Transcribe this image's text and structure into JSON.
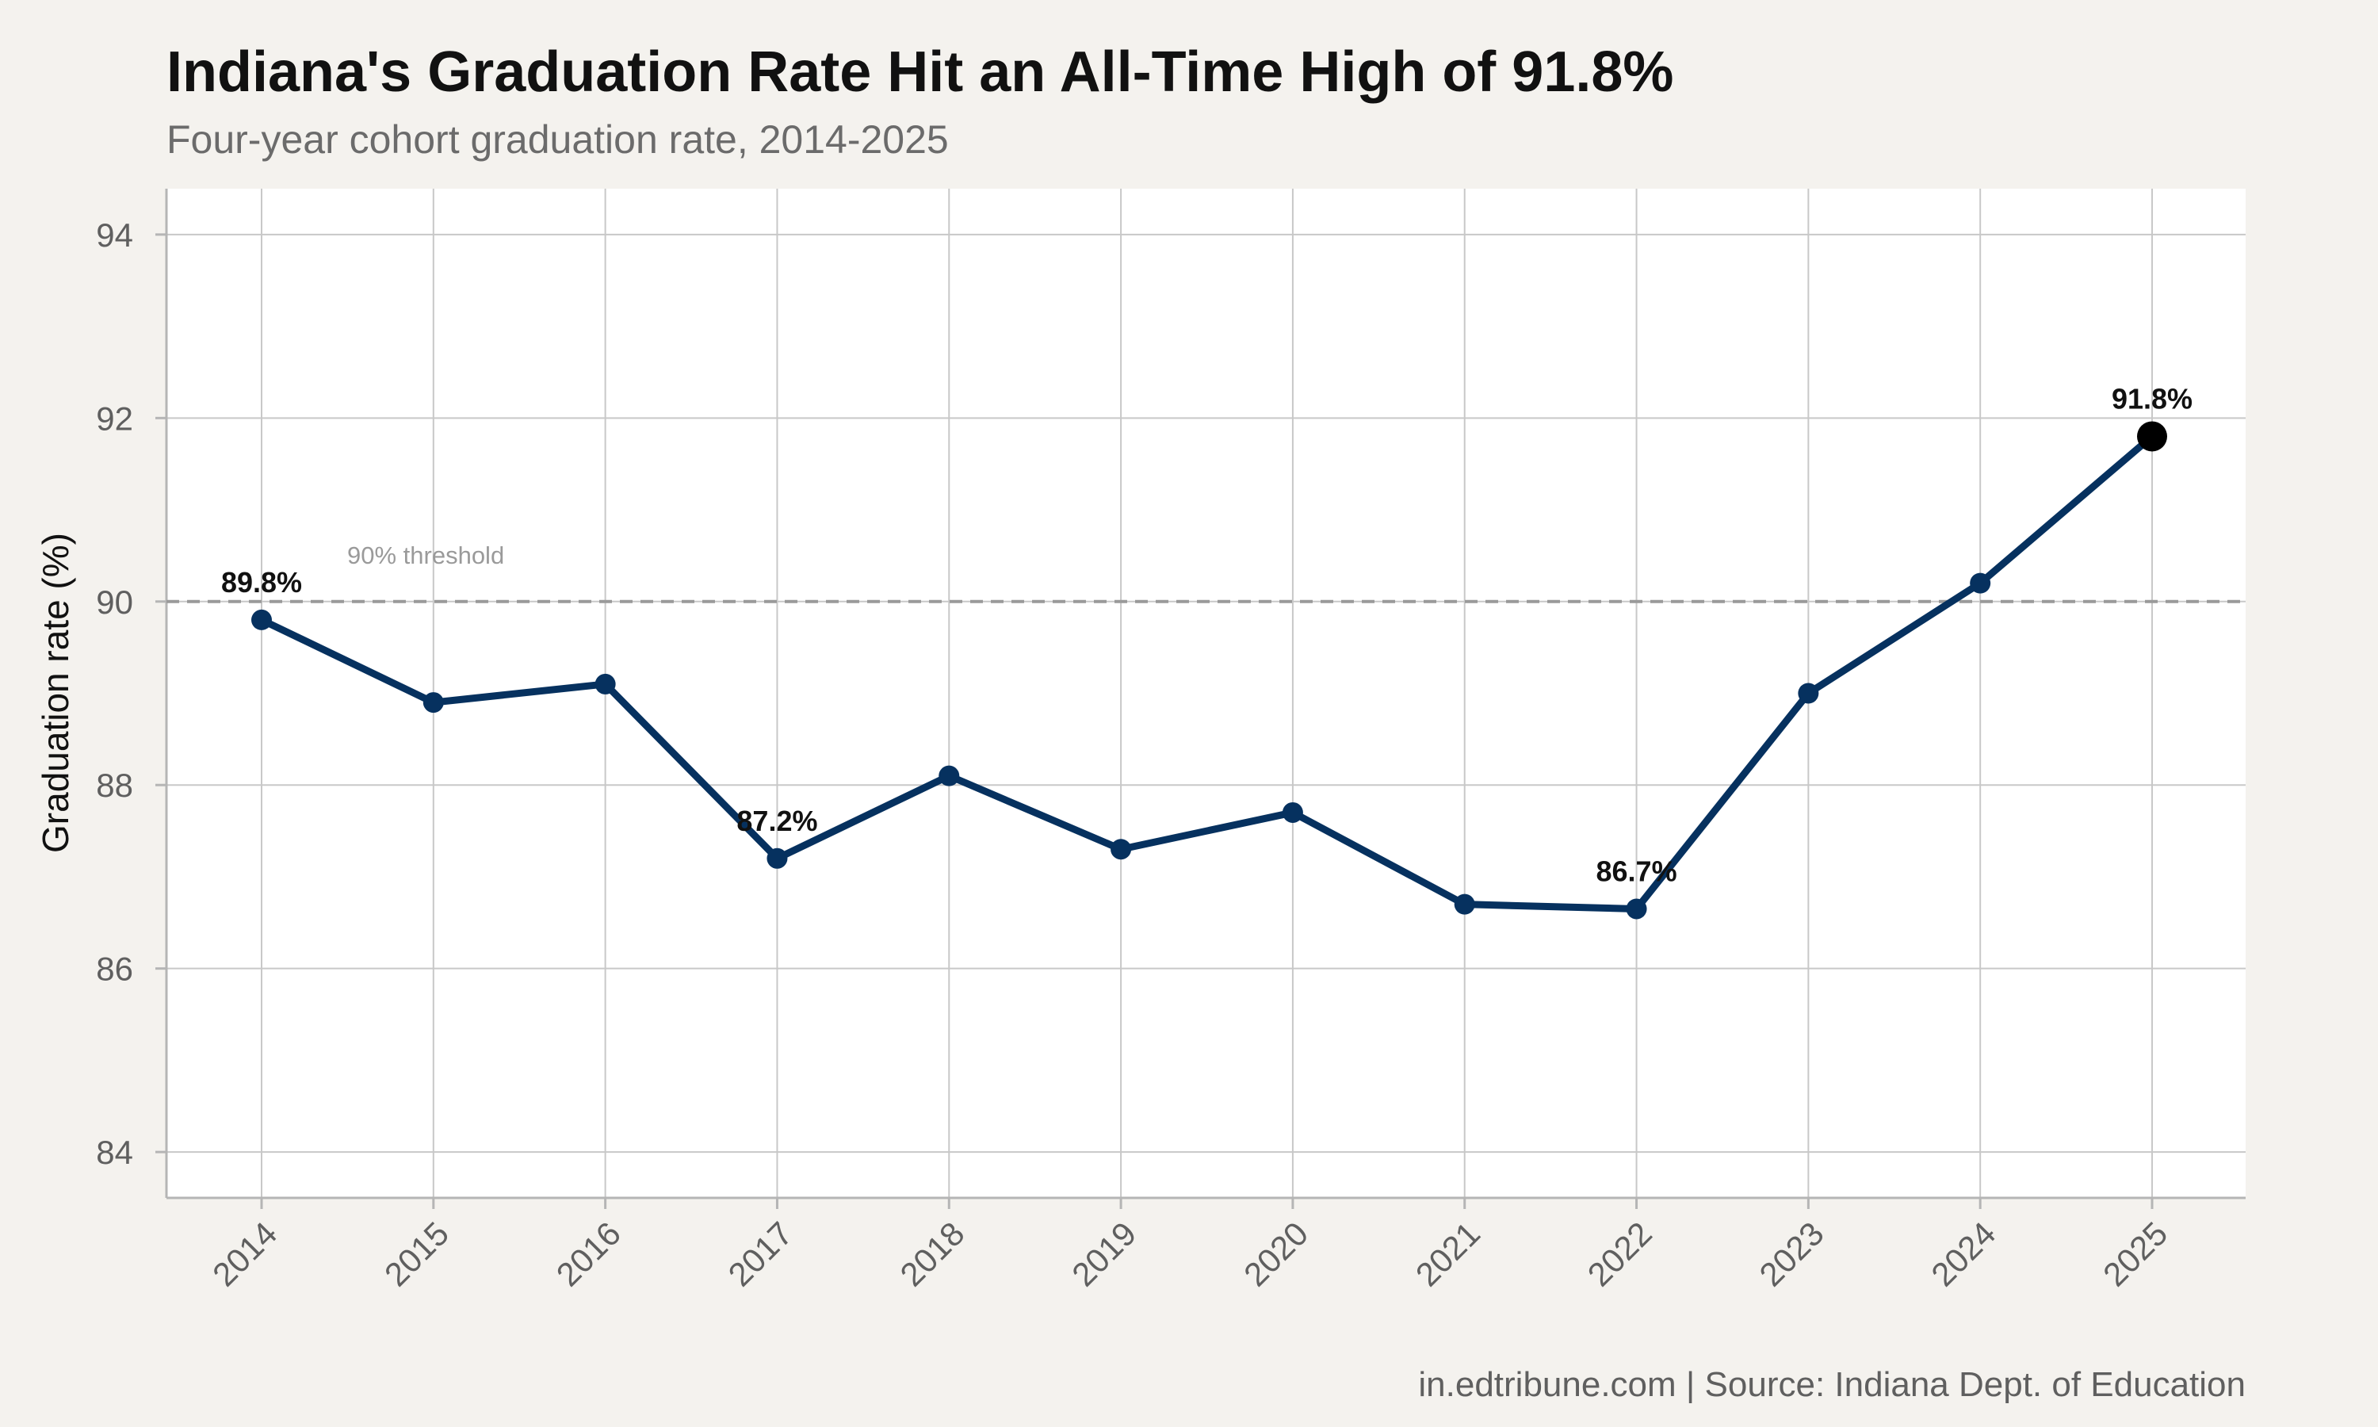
{
  "chart_data": {
    "type": "line",
    "title": "Indiana's Graduation Rate Hit an All-Time High of 91.8%",
    "subtitle": "Four-year cohort graduation rate, 2014-2025",
    "xlabel": "",
    "ylabel": "Graduation rate (%)",
    "caption": "in.edtribune.com | Source: Indiana Dept. of Education",
    "x": [
      "2014",
      "2015",
      "2016",
      "2017",
      "2018",
      "2019",
      "2020",
      "2021",
      "2022",
      "2023",
      "2024",
      "2025"
    ],
    "series": [
      {
        "values": [
          89.8,
          88.9,
          89.1,
          87.2,
          88.1,
          87.3,
          87.7,
          86.7,
          86.65,
          89.0,
          90.2,
          91.8
        ]
      }
    ],
    "ylim": [
      83.5,
      94.5
    ],
    "yticks": [
      84,
      86,
      88,
      90,
      92,
      94
    ],
    "grid": true,
    "annotations": [
      {
        "x": "2014",
        "value": 89.8,
        "text": "89.8%"
      },
      {
        "x": "2017",
        "value": 87.2,
        "text": "87.2%"
      },
      {
        "x": "2022",
        "value": 86.65,
        "text": "86.7%"
      },
      {
        "x": "2025",
        "value": 91.8,
        "text": "91.8%"
      }
    ],
    "reference_line": {
      "value": 90,
      "label": "90% threshold",
      "style": "dashed"
    },
    "highlight_point": "2025",
    "colors": {
      "line": "#06315f",
      "highlight": "#000000",
      "reference": "#9a9a9a",
      "grid": "#c8c8c8",
      "panel": "#ffffff",
      "background": "#f4f2ee"
    }
  }
}
